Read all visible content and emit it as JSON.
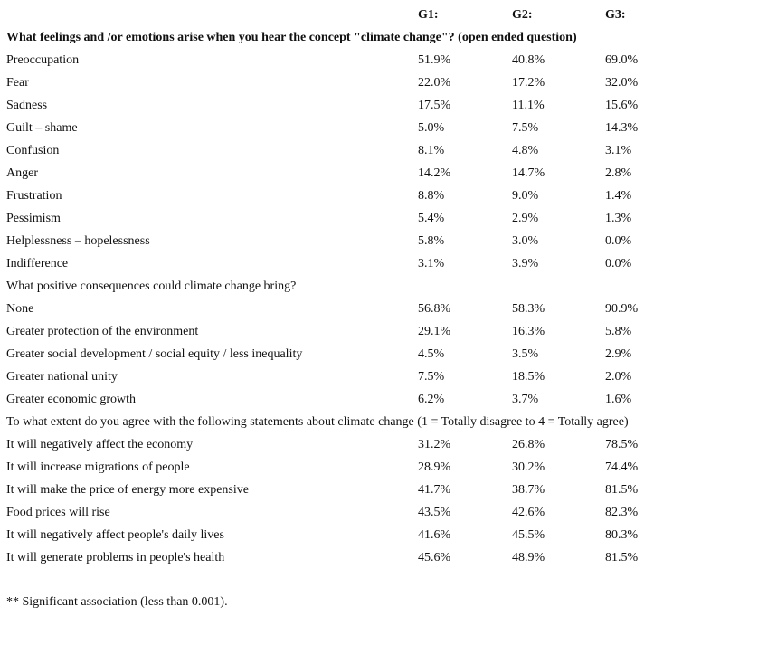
{
  "table": {
    "columns": [
      "G1:",
      "G2:",
      "G3:"
    ],
    "sections": [
      {
        "question": "What feelings and /or emotions arise when you hear the concept \"climate change\"? (open ended question)",
        "items": [
          {
            "label": "Preoccupation",
            "values": [
              "51.9%",
              "40.8%",
              "69.0%"
            ]
          },
          {
            "label": "Fear",
            "values": [
              "22.0%",
              "17.2%",
              "32.0%"
            ]
          },
          {
            "label": "Sadness",
            "values": [
              "17.5%",
              "11.1%",
              "15.6%"
            ]
          },
          {
            "label": "Guilt – shame",
            "values": [
              "5.0%",
              "7.5%",
              "14.3%"
            ]
          },
          {
            "label": "Confusion",
            "values": [
              "8.1%",
              "4.8%",
              "3.1%"
            ]
          },
          {
            "label": "Anger",
            "values": [
              "14.2%",
              "14.7%",
              "2.8%"
            ]
          },
          {
            "label": "Frustration",
            "values": [
              "8.8%",
              "9.0%",
              "1.4%"
            ]
          },
          {
            "label": "Pessimism",
            "values": [
              "5.4%",
              "2.9%",
              "1.3%"
            ]
          },
          {
            "label": "Helplessness – hopelessness",
            "values": [
              "5.8%",
              "3.0%",
              "0.0%"
            ]
          },
          {
            "label": "Indifference",
            "values": [
              "3.1%",
              "3.9%",
              "0.0%"
            ]
          }
        ]
      },
      {
        "question": "What positive consequences could climate change bring?",
        "items": [
          {
            "label": "None",
            "values": [
              "56.8%",
              "58.3%",
              "90.9%"
            ]
          },
          {
            "label": "Greater protection of the environment",
            "values": [
              "29.1%",
              "16.3%",
              "5.8%"
            ]
          },
          {
            "label": "Greater social development / social equity / less inequality",
            "values": [
              "4.5%",
              "3.5%",
              "2.9%"
            ]
          },
          {
            "label": "Greater national unity",
            "values": [
              "7.5%",
              "18.5%",
              "2.0%"
            ]
          },
          {
            "label": "Greater economic growth",
            "values": [
              "6.2%",
              "3.7%",
              "1.6%"
            ]
          }
        ]
      },
      {
        "question": "To what extent do you agree with the following statements about climate change (1 = Totally disagree to 4 = Totally agree)",
        "items": [
          {
            "label": "It will negatively affect the economy",
            "values": [
              "31.2%",
              "26.8%",
              "78.5%"
            ]
          },
          {
            "label": "It will increase migrations of people",
            "values": [
              "28.9%",
              "30.2%",
              "74.4%"
            ]
          },
          {
            "label": "It will make the price of energy more expensive",
            "values": [
              "41.7%",
              "38.7%",
              "81.5%"
            ]
          },
          {
            "label": "Food prices will rise",
            "values": [
              "43.5%",
              "42.6%",
              "82.3%"
            ]
          },
          {
            "label": "It will negatively affect people's daily lives",
            "values": [
              "41.6%",
              "45.5%",
              "80.3%"
            ]
          },
          {
            "label": "It will generate problems in people's health",
            "values": [
              "45.6%",
              "48.9%",
              "81.5%"
            ]
          }
        ]
      }
    ]
  },
  "footnote": "** Significant association (less than 0.001)."
}
